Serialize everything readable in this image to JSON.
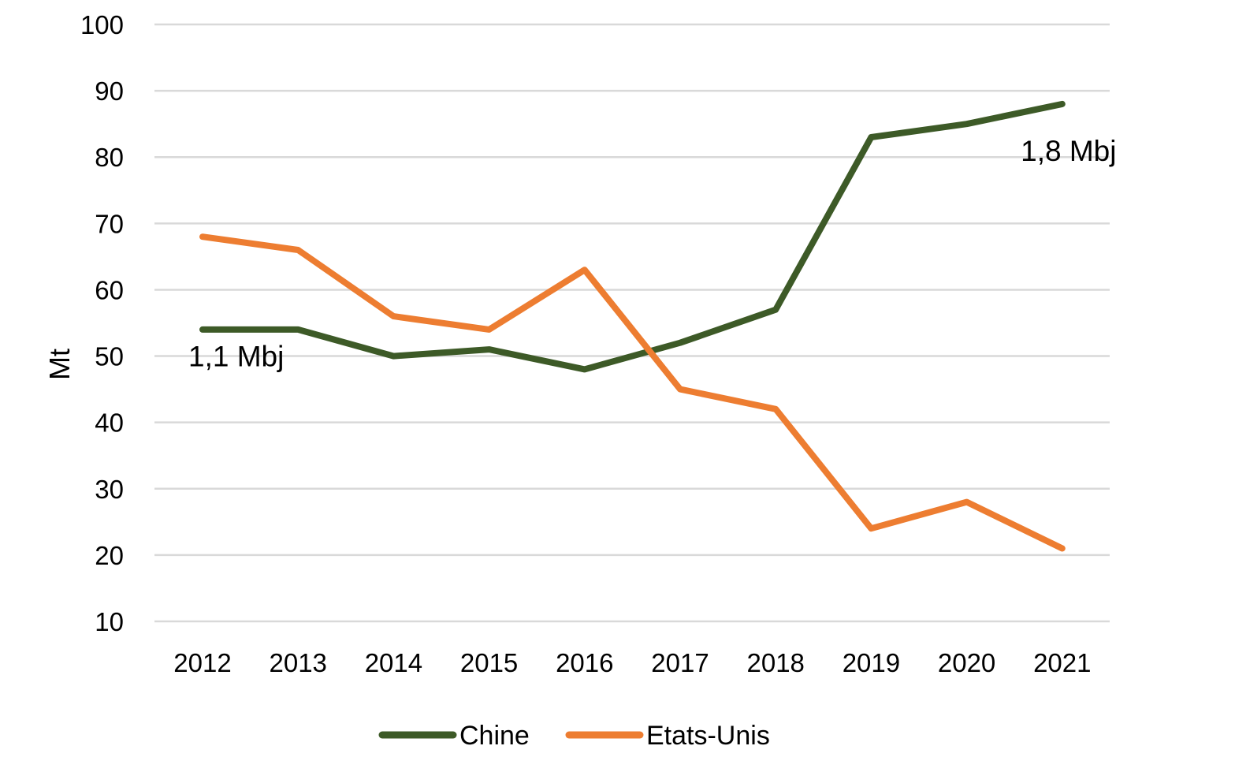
{
  "chart_data": {
    "type": "line",
    "title": "",
    "xlabel": "",
    "ylabel": "Mt",
    "ylim": [
      10,
      100
    ],
    "yticks": [
      10,
      20,
      30,
      40,
      50,
      60,
      70,
      80,
      90,
      100
    ],
    "grid": true,
    "legend_position": "bottom",
    "categories": [
      "2012",
      "2013",
      "2014",
      "2015",
      "2016",
      "2017",
      "2018",
      "2019",
      "2020",
      "2021"
    ],
    "series": [
      {
        "name": "Chine",
        "color": "#3d5a27",
        "values": [
          54,
          54,
          50,
          51,
          48,
          52,
          57,
          83,
          85,
          88
        ]
      },
      {
        "name": "Etats-Unis",
        "color": "#ed7d31",
        "values": [
          68,
          66,
          56,
          54,
          63,
          45,
          42,
          24,
          28,
          21
        ]
      }
    ],
    "annotations": [
      {
        "text": "1,1 Mbj",
        "category": "2012",
        "value": 50
      },
      {
        "text": "1,8 Mbj",
        "category": "2021",
        "value": 81
      }
    ]
  }
}
